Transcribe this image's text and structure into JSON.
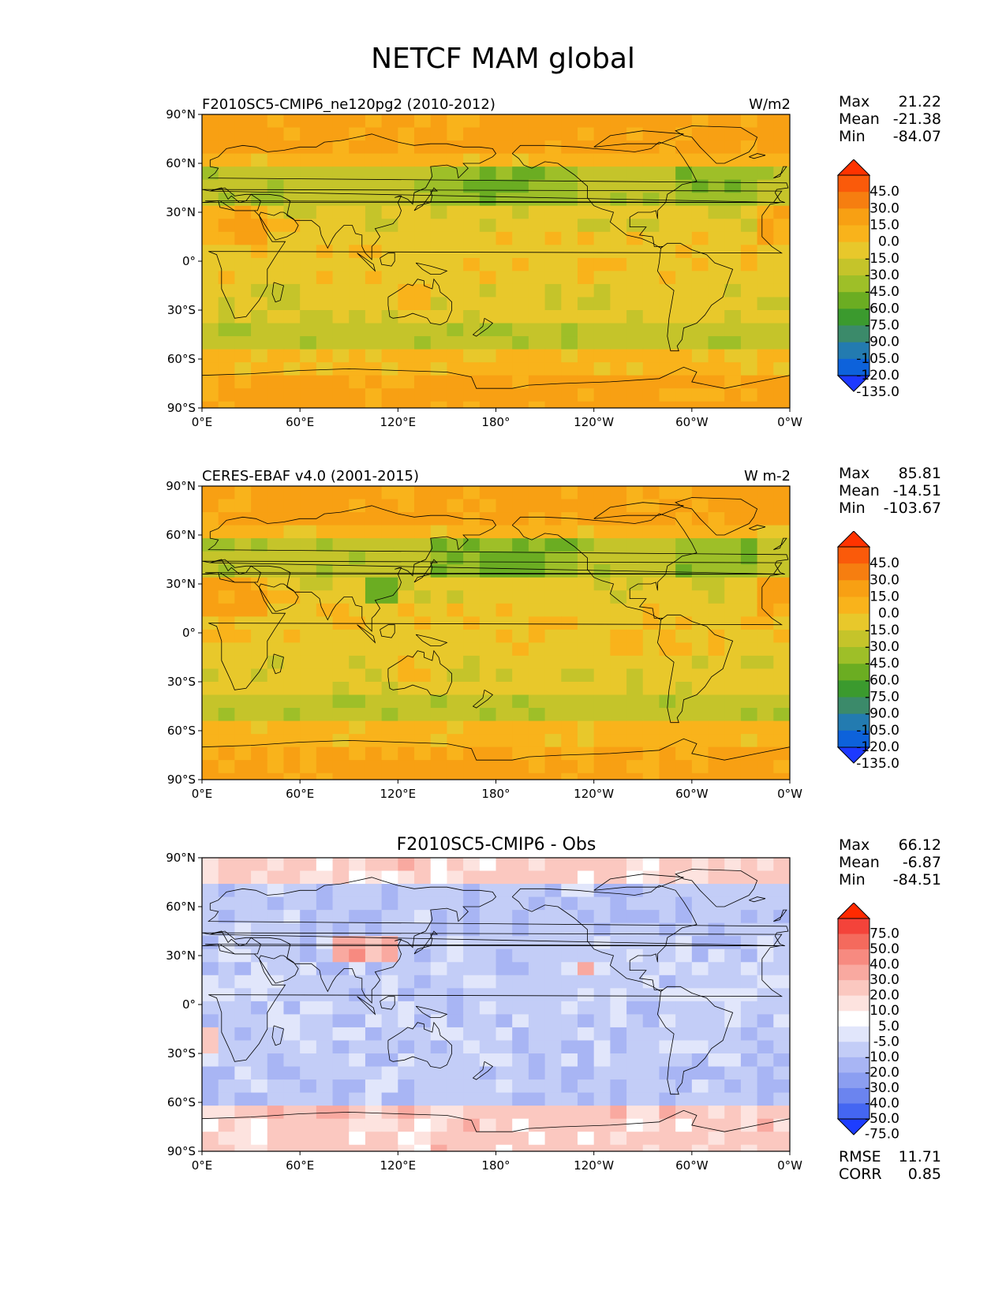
{
  "figure_title": "NETCF MAM global",
  "lon_tick_labels": [
    "0°E",
    "60°E",
    "120°E",
    "180°",
    "120°W",
    "60°W",
    "0°W"
  ],
  "lat_tick_labels": [
    "90°N",
    "60°N",
    "30°N",
    "0°",
    "30°S",
    "60°S",
    "90°S"
  ],
  "panels": [
    {
      "title_left": "F2010SC5-CMIP6_ne120pg2 (2010-2012)",
      "title_right": "W/m2",
      "stats": {
        "max_label": "Max",
        "max": "21.22",
        "mean_label": "Mean",
        "mean": "-21.38",
        "min_label": "Min",
        "min": "-84.07"
      },
      "colorbar": {
        "levels": [
          "45.0",
          "30.0",
          "15.0",
          "0.0",
          "-15.0",
          "-30.0",
          "-45.0",
          "-60.0",
          "-75.0",
          "-90.0",
          "-105.0",
          "-120.0",
          "-135.0"
        ],
        "colors": [
          "#ff3300",
          "#fa5a0a",
          "#f67e10",
          "#f8a013",
          "#f9b31b",
          "#e8c82b",
          "#c5c42a",
          "#9ebf28",
          "#6bad22",
          "#3b9a2e",
          "#3b8a6a",
          "#237bb0",
          "#0d62db",
          "#1d39ff"
        ]
      }
    },
    {
      "title_left": "CERES-EBAF v4.0 (2001-2015)",
      "title_right": "W m-2",
      "stats": {
        "max_label": "Max",
        "max": "85.81",
        "mean_label": "Mean",
        "mean": "-14.51",
        "min_label": "Min",
        "min": "-103.67"
      },
      "colorbar": {
        "levels": [
          "45.0",
          "30.0",
          "15.0",
          "0.0",
          "-15.0",
          "-30.0",
          "-45.0",
          "-60.0",
          "-75.0",
          "-90.0",
          "-105.0",
          "-120.0",
          "-135.0"
        ],
        "colors": [
          "#ff3300",
          "#fa5a0a",
          "#f67e10",
          "#f8a013",
          "#f9b31b",
          "#e8c82b",
          "#c5c42a",
          "#9ebf28",
          "#6bad22",
          "#3b9a2e",
          "#3b8a6a",
          "#237bb0",
          "#0d62db",
          "#1d39ff"
        ]
      }
    },
    {
      "title_center": "F2010SC5-CMIP6 - Obs",
      "stats": {
        "max_label": "Max",
        "max": "66.12",
        "mean_label": "Mean",
        "mean": "-6.87",
        "min_label": "Min",
        "min": "-84.51"
      },
      "colorbar": {
        "levels": [
          "75.0",
          "50.0",
          "40.0",
          "30.0",
          "20.0",
          "10.0",
          "5.0",
          "-5.0",
          "-10.0",
          "-20.0",
          "-30.0",
          "-40.0",
          "-50.0",
          "-75.0"
        ],
        "colors": [
          "#ff2a00",
          "#f4433a",
          "#f46a5d",
          "#f78a80",
          "#f9a9a0",
          "#fbc8c0",
          "#fde3df",
          "#ffffff",
          "#e1e6fb",
          "#c3cdf7",
          "#a8b5f4",
          "#8b9ef1",
          "#6b84ef",
          "#4466f2",
          "#1d3dff"
        ]
      },
      "rmse_label": "RMSE",
      "rmse": "11.71",
      "corr_label": "CORR",
      "corr": "0.85"
    }
  ]
}
